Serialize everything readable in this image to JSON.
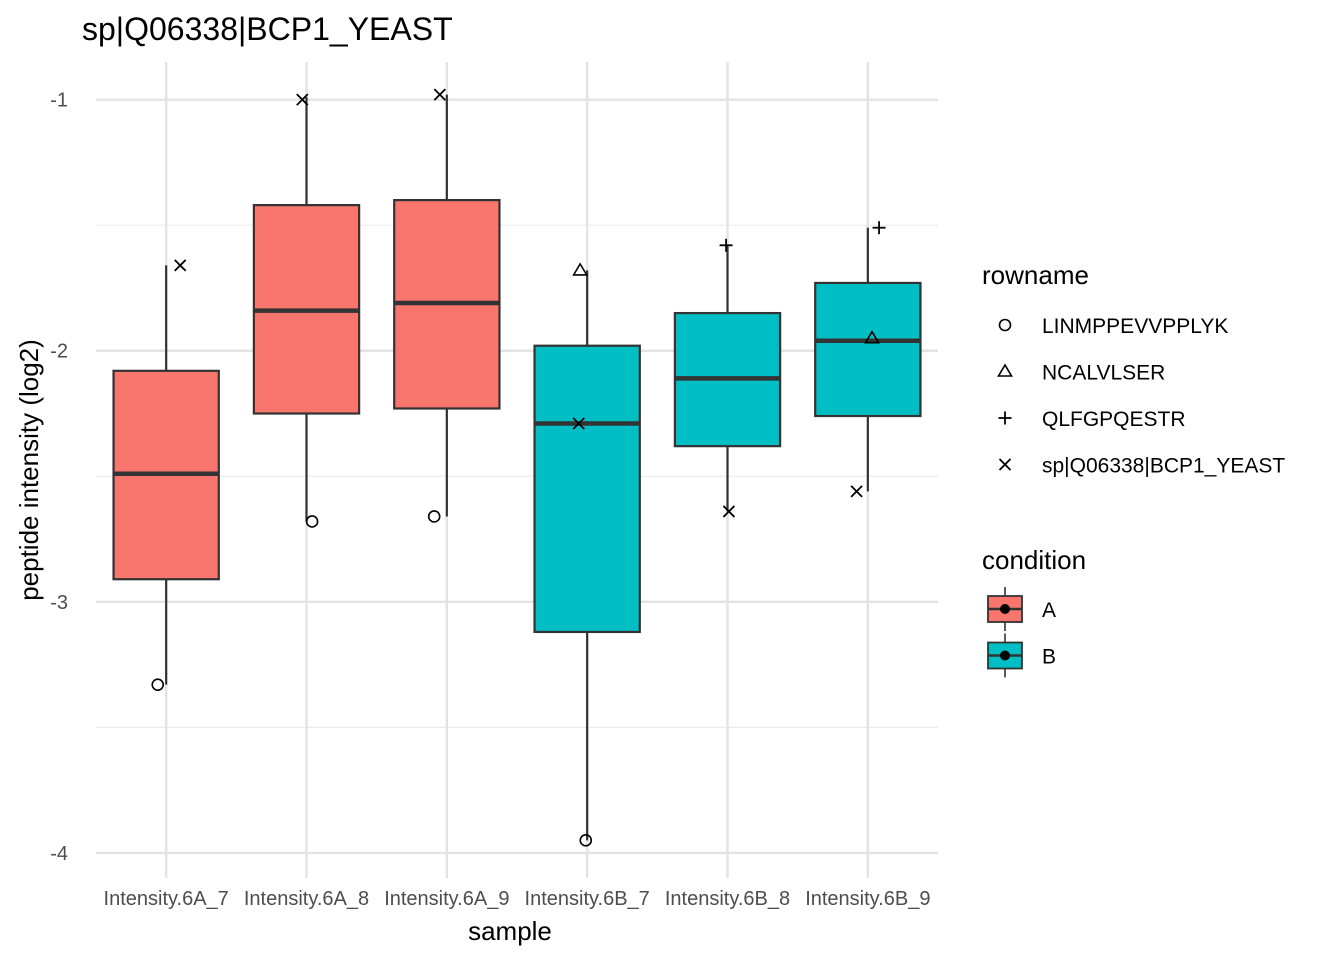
{
  "chart_data": {
    "type": "boxplot",
    "title": "sp|Q06338|BCP1_YEAST",
    "xlabel": "sample",
    "ylabel": "peptide intensity (log2)",
    "ylim": [
      -4.1,
      -0.85
    ],
    "yticks": [
      -1,
      -2,
      -3,
      -4
    ],
    "ytick_labels": [
      "-1",
      "-2",
      "-3",
      "-4"
    ],
    "grid": true,
    "categories": [
      "Intensity.6A_7",
      "Intensity.6A_8",
      "Intensity.6A_9",
      "Intensity.6B_7",
      "Intensity.6B_8",
      "Intensity.6B_9"
    ],
    "boxes": [
      {
        "sample": "Intensity.6A_7",
        "condition": "A",
        "whisker_low": -3.33,
        "q1": -2.91,
        "median": -2.49,
        "q3": -2.08,
        "whisker_high": -1.66
      },
      {
        "sample": "Intensity.6A_8",
        "condition": "A",
        "whisker_low": -2.68,
        "q1": -2.25,
        "median": -1.84,
        "q3": -1.42,
        "whisker_high": -0.99
      },
      {
        "sample": "Intensity.6A_9",
        "condition": "A",
        "whisker_low": -2.66,
        "q1": -2.23,
        "median": -1.81,
        "q3": -1.4,
        "whisker_high": -0.98
      },
      {
        "sample": "Intensity.6B_7",
        "condition": "B",
        "whisker_low": -3.95,
        "q1": -3.12,
        "median": -2.29,
        "q3": -1.98,
        "whisker_high": -1.68
      },
      {
        "sample": "Intensity.6B_8",
        "condition": "B",
        "whisker_low": -2.64,
        "q1": -2.38,
        "median": -2.11,
        "q3": -1.85,
        "whisker_high": -1.58
      },
      {
        "sample": "Intensity.6B_9",
        "condition": "B",
        "whisker_low": -2.56,
        "q1": -2.26,
        "median": -1.96,
        "q3": -1.73,
        "whisker_high": -1.51
      }
    ],
    "points": [
      {
        "sample": "Intensity.6A_7",
        "rowname": "LINMPPEVVPPLYK",
        "y": -3.33,
        "jitter": -0.06
      },
      {
        "sample": "Intensity.6A_7",
        "rowname": "sp|Q06338|BCP1_YEAST",
        "y": -1.66,
        "jitter": 0.1
      },
      {
        "sample": "Intensity.6A_8",
        "rowname": "LINMPPEVVPPLYK",
        "y": -2.68,
        "jitter": 0.04
      },
      {
        "sample": "Intensity.6A_8",
        "rowname": "sp|Q06338|BCP1_YEAST",
        "y": -1.0,
        "jitter": -0.03
      },
      {
        "sample": "Intensity.6A_9",
        "rowname": "LINMPPEVVPPLYK",
        "y": -2.66,
        "jitter": -0.09
      },
      {
        "sample": "Intensity.6A_9",
        "rowname": "sp|Q06338|BCP1_YEAST",
        "y": -0.98,
        "jitter": -0.05
      },
      {
        "sample": "Intensity.6B_7",
        "rowname": "LINMPPEVVPPLYK",
        "y": -3.95,
        "jitter": -0.01
      },
      {
        "sample": "Intensity.6B_7",
        "rowname": "NCALVLSER",
        "y": -1.68,
        "jitter": -0.05
      },
      {
        "sample": "Intensity.6B_7",
        "rowname": "sp|Q06338|BCP1_YEAST",
        "y": -2.29,
        "jitter": -0.06
      },
      {
        "sample": "Intensity.6B_8",
        "rowname": "QLFGPQESTR",
        "y": -1.58,
        "jitter": -0.01
      },
      {
        "sample": "Intensity.6B_8",
        "rowname": "sp|Q06338|BCP1_YEAST",
        "y": -2.64,
        "jitter": 0.01
      },
      {
        "sample": "Intensity.6B_9",
        "rowname": "NCALVLSER",
        "y": -1.95,
        "jitter": 0.03
      },
      {
        "sample": "Intensity.6B_9",
        "rowname": "QLFGPQESTR",
        "y": -1.51,
        "jitter": 0.08
      },
      {
        "sample": "Intensity.6B_9",
        "rowname": "sp|Q06338|BCP1_YEAST",
        "y": -2.56,
        "jitter": -0.08
      }
    ],
    "legend_rowname": {
      "title": "rowname",
      "entries": [
        {
          "label": "LINMPPEVVPPLYK",
          "shape": "circle"
        },
        {
          "label": "NCALVLSER",
          "shape": "triangle"
        },
        {
          "label": "QLFGPQESTR",
          "shape": "plus"
        },
        {
          "label": "sp|Q06338|BCP1_YEAST",
          "shape": "cross"
        }
      ]
    },
    "legend_condition": {
      "title": "condition",
      "entries": [
        {
          "label": "A",
          "color": "#F8766D"
        },
        {
          "label": "B",
          "color": "#00BFC4"
        }
      ]
    },
    "legend_placement": "right"
  }
}
